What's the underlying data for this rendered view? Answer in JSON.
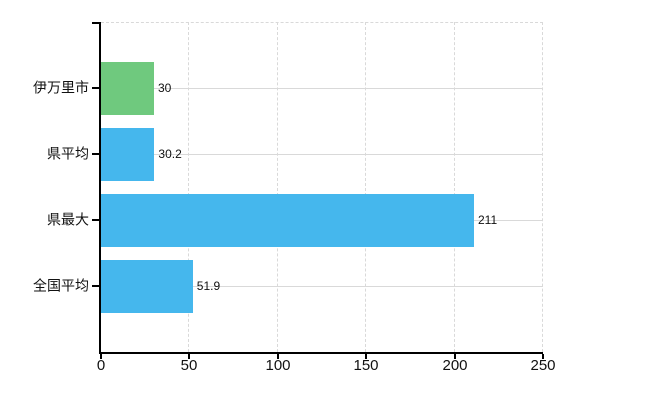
{
  "chart_data": {
    "type": "bar",
    "orientation": "horizontal",
    "title": "",
    "xlabel": "",
    "ylabel": "",
    "categories": [
      "伊万里市",
      "県平均",
      "県最大",
      "全国平均"
    ],
    "values": [
      30,
      30.2,
      211,
      51.9
    ],
    "value_labels": [
      "30",
      "30.2",
      "211",
      "51.9"
    ],
    "bar_colors": [
      "#6fc97e",
      "#45b7ed",
      "#45b7ed",
      "#45b7ed"
    ],
    "xlim": [
      0,
      250
    ],
    "x_ticks": [
      0,
      50,
      100,
      150,
      200,
      250
    ],
    "grid": true,
    "legend_position": "none",
    "background": "#ffffff"
  },
  "colors": {
    "bar_default": "#45b7ed",
    "bar_highlight": "#6fc97e",
    "axis": "#000000",
    "gridline": "#d9d9d9",
    "text": "#111111",
    "background": "#ffffff"
  }
}
